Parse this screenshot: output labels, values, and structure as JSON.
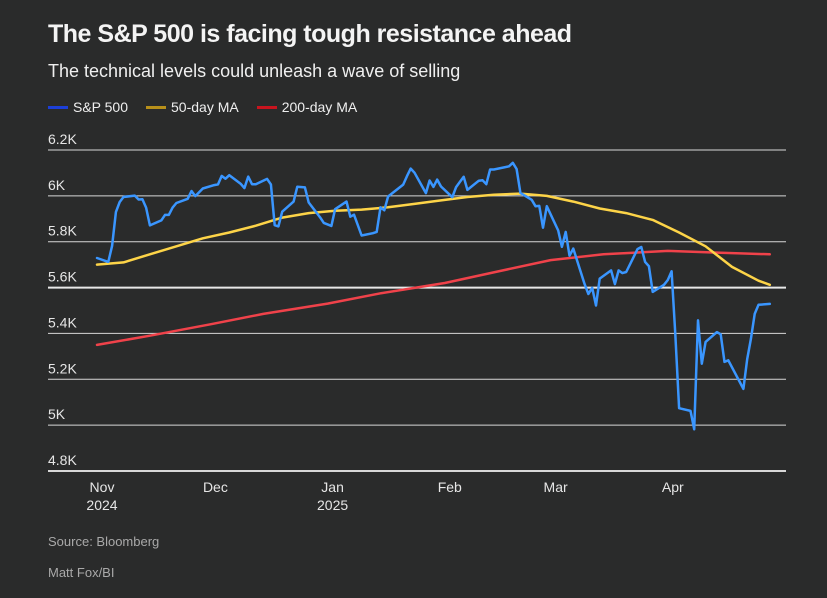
{
  "title": "The S&P 500 is facing tough resistance ahead",
  "subtitle": "The technical levels could unleash a wave of selling",
  "source": "Source: Bloomberg",
  "credit": "Matt Fox/BI",
  "chart_data": {
    "type": "line",
    "title": "The S&P 500 is facing tough resistance ahead",
    "xlabel": "",
    "ylabel": "",
    "ylim": [
      4800,
      6200
    ],
    "yticks": [
      {
        "v": 6200,
        "label": "6.2K"
      },
      {
        "v": 6000,
        "label": "6K"
      },
      {
        "v": 5800,
        "label": "5.8K"
      },
      {
        "v": 5600,
        "label": "5.6K"
      },
      {
        "v": 5400,
        "label": "5.4K"
      },
      {
        "v": 5200,
        "label": "5.2K"
      },
      {
        "v": 5000,
        "label": "5K"
      },
      {
        "v": 4800,
        "label": "4.8K"
      }
    ],
    "highlight_gridline": 5600,
    "xticks": [
      {
        "date": "2024-11-01",
        "line1": "Nov",
        "line2": "2024"
      },
      {
        "date": "2024-12-01",
        "line1": "Dec",
        "line2": ""
      },
      {
        "date": "2025-01-01",
        "line1": "Jan",
        "line2": "2025"
      },
      {
        "date": "2025-02-01",
        "line1": "Feb",
        "line2": ""
      },
      {
        "date": "2025-03-01",
        "line1": "Mar",
        "line2": ""
      },
      {
        "date": "2025-04-01",
        "line1": "Apr",
        "line2": ""
      }
    ],
    "legend_position": "top-left",
    "grid": true,
    "series": [
      {
        "name": "S&P 500",
        "legend_color": "#1c3fd8",
        "color": "#3a96ff",
        "points": [
          [
            "2024-11-01",
            5729
          ],
          [
            "2024-11-04",
            5712
          ],
          [
            "2024-11-05",
            5782
          ],
          [
            "2024-11-06",
            5929
          ],
          [
            "2024-11-07",
            5973
          ],
          [
            "2024-11-08",
            5995
          ],
          [
            "2024-11-11",
            6001
          ],
          [
            "2024-11-12",
            5984
          ],
          [
            "2024-11-13",
            5985
          ],
          [
            "2024-11-14",
            5949
          ],
          [
            "2024-11-15",
            5871
          ],
          [
            "2024-11-18",
            5893
          ],
          [
            "2024-11-19",
            5917
          ],
          [
            "2024-11-20",
            5917
          ],
          [
            "2024-11-21",
            5949
          ],
          [
            "2024-11-22",
            5969
          ],
          [
            "2024-11-25",
            5987
          ],
          [
            "2024-11-26",
            6021
          ],
          [
            "2024-11-27",
            5999
          ],
          [
            "2024-11-29",
            6032
          ],
          [
            "2024-12-02",
            6047
          ],
          [
            "2024-12-03",
            6050
          ],
          [
            "2024-12-04",
            6087
          ],
          [
            "2024-12-05",
            6075
          ],
          [
            "2024-12-06",
            6090
          ],
          [
            "2024-12-09",
            6053
          ],
          [
            "2024-12-10",
            6034
          ],
          [
            "2024-12-11",
            6084
          ],
          [
            "2024-12-12",
            6051
          ],
          [
            "2024-12-13",
            6051
          ],
          [
            "2024-12-16",
            6074
          ],
          [
            "2024-12-17",
            6050
          ],
          [
            "2024-12-18",
            5872
          ],
          [
            "2024-12-19",
            5867
          ],
          [
            "2024-12-20",
            5931
          ],
          [
            "2024-12-23",
            5975
          ],
          [
            "2024-12-24",
            6040
          ],
          [
            "2024-12-26",
            6037
          ],
          [
            "2024-12-27",
            5971
          ],
          [
            "2024-12-30",
            5907
          ],
          [
            "2024-12-31",
            5882
          ],
          [
            "2025-01-02",
            5869
          ],
          [
            "2025-01-03",
            5942
          ],
          [
            "2025-01-06",
            5975
          ],
          [
            "2025-01-07",
            5909
          ],
          [
            "2025-01-08",
            5918
          ],
          [
            "2025-01-10",
            5827
          ],
          [
            "2025-01-13",
            5837
          ],
          [
            "2025-01-14",
            5843
          ],
          [
            "2025-01-15",
            5950
          ],
          [
            "2025-01-16",
            5937
          ],
          [
            "2025-01-17",
            5997
          ],
          [
            "2025-01-21",
            6049
          ],
          [
            "2025-01-22",
            6086
          ],
          [
            "2025-01-23",
            6119
          ],
          [
            "2025-01-24",
            6101
          ],
          [
            "2025-01-27",
            6012
          ],
          [
            "2025-01-28",
            6067
          ],
          [
            "2025-01-29",
            6039
          ],
          [
            "2025-01-30",
            6071
          ],
          [
            "2025-01-31",
            6041
          ],
          [
            "2025-02-03",
            5994
          ],
          [
            "2025-02-04",
            6038
          ],
          [
            "2025-02-05",
            6061
          ],
          [
            "2025-02-06",
            6083
          ],
          [
            "2025-02-07",
            6026
          ],
          [
            "2025-02-10",
            6066
          ],
          [
            "2025-02-11",
            6068
          ],
          [
            "2025-02-12",
            6051
          ],
          [
            "2025-02-13",
            6115
          ],
          [
            "2025-02-14",
            6115
          ],
          [
            "2025-02-18",
            6129
          ],
          [
            "2025-02-19",
            6144
          ],
          [
            "2025-02-20",
            6117
          ],
          [
            "2025-02-21",
            6013
          ],
          [
            "2025-02-24",
            5983
          ],
          [
            "2025-02-25",
            5955
          ],
          [
            "2025-02-26",
            5956
          ],
          [
            "2025-02-27",
            5861
          ],
          [
            "2025-02-28",
            5955
          ],
          [
            "2025-03-03",
            5849
          ],
          [
            "2025-03-04",
            5778
          ],
          [
            "2025-03-05",
            5843
          ],
          [
            "2025-03-06",
            5739
          ],
          [
            "2025-03-07",
            5770
          ],
          [
            "2025-03-10",
            5615
          ],
          [
            "2025-03-11",
            5572
          ],
          [
            "2025-03-12",
            5599
          ],
          [
            "2025-03-13",
            5522
          ],
          [
            "2025-03-14",
            5639
          ],
          [
            "2025-03-17",
            5675
          ],
          [
            "2025-03-18",
            5615
          ],
          [
            "2025-03-19",
            5675
          ],
          [
            "2025-03-20",
            5663
          ],
          [
            "2025-03-21",
            5668
          ],
          [
            "2025-03-24",
            5768
          ],
          [
            "2025-03-25",
            5777
          ],
          [
            "2025-03-26",
            5712
          ],
          [
            "2025-03-27",
            5693
          ],
          [
            "2025-03-28",
            5581
          ],
          [
            "2025-03-31",
            5612
          ],
          [
            "2025-04-01",
            5633
          ],
          [
            "2025-04-02",
            5671
          ],
          [
            "2025-04-03",
            5397
          ],
          [
            "2025-04-04",
            5074
          ],
          [
            "2025-04-07",
            5062
          ],
          [
            "2025-04-08",
            4982
          ],
          [
            "2025-04-09",
            5457
          ],
          [
            "2025-04-10",
            5268
          ],
          [
            "2025-04-11",
            5363
          ],
          [
            "2025-04-14",
            5406
          ],
          [
            "2025-04-15",
            5396
          ],
          [
            "2025-04-16",
            5276
          ],
          [
            "2025-04-17",
            5283
          ],
          [
            "2025-04-21",
            5158
          ],
          [
            "2025-04-22",
            5288
          ],
          [
            "2025-04-23",
            5376
          ],
          [
            "2025-04-24",
            5485
          ],
          [
            "2025-04-25",
            5525
          ],
          [
            "2025-04-28",
            5529
          ]
        ]
      },
      {
        "name": "50-day MA",
        "legend_color": "#b8901a",
        "color": "#fdd448",
        "points": [
          [
            "2024-11-01",
            5700
          ],
          [
            "2024-11-08",
            5710
          ],
          [
            "2024-11-15",
            5745
          ],
          [
            "2024-11-22",
            5780
          ],
          [
            "2024-11-29",
            5815
          ],
          [
            "2024-12-06",
            5840
          ],
          [
            "2024-12-13",
            5870
          ],
          [
            "2024-12-20",
            5905
          ],
          [
            "2024-12-27",
            5925
          ],
          [
            "2025-01-03",
            5935
          ],
          [
            "2025-01-10",
            5940
          ],
          [
            "2025-01-17",
            5950
          ],
          [
            "2025-01-24",
            5965
          ],
          [
            "2025-01-31",
            5980
          ],
          [
            "2025-02-07",
            5995
          ],
          [
            "2025-02-14",
            6005
          ],
          [
            "2025-02-21",
            6010
          ],
          [
            "2025-02-28",
            6000
          ],
          [
            "2025-03-07",
            5975
          ],
          [
            "2025-03-14",
            5945
          ],
          [
            "2025-03-21",
            5925
          ],
          [
            "2025-03-28",
            5895
          ],
          [
            "2025-04-04",
            5840
          ],
          [
            "2025-04-11",
            5780
          ],
          [
            "2025-04-18",
            5690
          ],
          [
            "2025-04-25",
            5630
          ],
          [
            "2025-04-28",
            5612
          ]
        ]
      },
      {
        "name": "200-day MA",
        "legend_color": "#c8141e",
        "color": "#f0424a",
        "points": [
          [
            "2024-11-01",
            5350
          ],
          [
            "2024-11-15",
            5390
          ],
          [
            "2024-12-01",
            5440
          ],
          [
            "2024-12-15",
            5485
          ],
          [
            "2025-01-01",
            5530
          ],
          [
            "2025-01-15",
            5575
          ],
          [
            "2025-02-01",
            5620
          ],
          [
            "2025-02-15",
            5670
          ],
          [
            "2025-03-01",
            5720
          ],
          [
            "2025-03-15",
            5745
          ],
          [
            "2025-04-01",
            5760
          ],
          [
            "2025-04-15",
            5752
          ],
          [
            "2025-04-28",
            5745
          ]
        ]
      }
    ]
  }
}
